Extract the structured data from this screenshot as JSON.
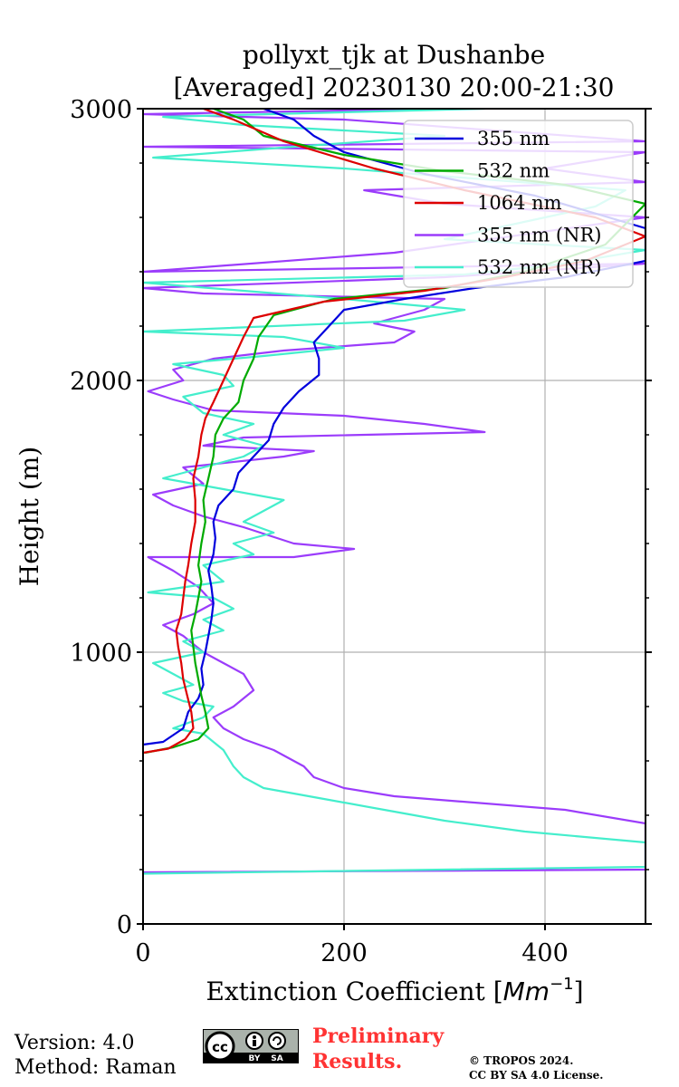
{
  "chart_data": {
    "type": "line",
    "title": [
      "pollyxt_tjk at Dushanbe",
      "[Averaged] 20230130 20:00-21:30"
    ],
    "xlabel": "Extinction Coefficient [",
    "xlabel_unit": "Mm",
    "xlabel_exp": "−1",
    "xlabel_close": "]",
    "ylabel": "Height (m)",
    "xlim": [
      0,
      500
    ],
    "ylim": [
      0,
      3000
    ],
    "xticks": [
      0,
      200,
      400
    ],
    "yticks": [
      0,
      1000,
      2000,
      3000
    ],
    "grid": true,
    "legend_position": "top-right",
    "series": [
      {
        "name": "355 nm",
        "color": "#0000dd",
        "points": [
          [
            0,
            660
          ],
          [
            20,
            670
          ],
          [
            40,
            720
          ],
          [
            45,
            780
          ],
          [
            55,
            830
          ],
          [
            60,
            880
          ],
          [
            58,
            940
          ],
          [
            62,
            1000
          ],
          [
            65,
            1060
          ],
          [
            68,
            1120
          ],
          [
            70,
            1180
          ],
          [
            68,
            1240
          ],
          [
            65,
            1300
          ],
          [
            70,
            1360
          ],
          [
            72,
            1420
          ],
          [
            70,
            1480
          ],
          [
            75,
            1540
          ],
          [
            90,
            1600
          ],
          [
            95,
            1660
          ],
          [
            110,
            1720
          ],
          [
            125,
            1780
          ],
          [
            130,
            1840
          ],
          [
            140,
            1900
          ],
          [
            155,
            1960
          ],
          [
            175,
            2020
          ],
          [
            175,
            2080
          ],
          [
            170,
            2140
          ],
          [
            185,
            2200
          ],
          [
            200,
            2260
          ],
          [
            260,
            2300
          ],
          [
            330,
            2340
          ],
          [
            420,
            2380
          ],
          [
            500,
            2440
          ],
          [
            500,
            2560
          ],
          [
            390,
            2680
          ],
          [
            280,
            2760
          ],
          [
            200,
            2840
          ],
          [
            170,
            2900
          ],
          [
            150,
            2960
          ],
          [
            120,
            3000
          ]
        ]
      },
      {
        "name": "532 nm",
        "color": "#00aa00",
        "points": [
          [
            2,
            630
          ],
          [
            30,
            650
          ],
          [
            55,
            680
          ],
          [
            65,
            720
          ],
          [
            62,
            780
          ],
          [
            58,
            840
          ],
          [
            55,
            900
          ],
          [
            52,
            960
          ],
          [
            50,
            1020
          ],
          [
            48,
            1080
          ],
          [
            52,
            1140
          ],
          [
            55,
            1200
          ],
          [
            58,
            1260
          ],
          [
            55,
            1320
          ],
          [
            58,
            1400
          ],
          [
            62,
            1480
          ],
          [
            60,
            1560
          ],
          [
            65,
            1640
          ],
          [
            70,
            1720
          ],
          [
            72,
            1800
          ],
          [
            80,
            1860
          ],
          [
            95,
            1920
          ],
          [
            100,
            2000
          ],
          [
            110,
            2080
          ],
          [
            115,
            2160
          ],
          [
            130,
            2240
          ],
          [
            190,
            2300
          ],
          [
            300,
            2340
          ],
          [
            380,
            2400
          ],
          [
            460,
            2500
          ],
          [
            500,
            2650
          ],
          [
            420,
            2720
          ],
          [
            300,
            2770
          ],
          [
            200,
            2830
          ],
          [
            120,
            2900
          ],
          [
            100,
            2960
          ],
          [
            70,
            3000
          ]
        ]
      },
      {
        "name": "1064 nm",
        "color": "#dd0000",
        "points": [
          [
            0,
            630
          ],
          [
            25,
            645
          ],
          [
            42,
            680
          ],
          [
            50,
            720
          ],
          [
            48,
            780
          ],
          [
            44,
            840
          ],
          [
            40,
            900
          ],
          [
            38,
            960
          ],
          [
            35,
            1020
          ],
          [
            33,
            1080
          ],
          [
            38,
            1140
          ],
          [
            40,
            1200
          ],
          [
            42,
            1260
          ],
          [
            45,
            1320
          ],
          [
            48,
            1400
          ],
          [
            52,
            1480
          ],
          [
            52,
            1560
          ],
          [
            50,
            1640
          ],
          [
            55,
            1720
          ],
          [
            58,
            1800
          ],
          [
            62,
            1860
          ],
          [
            70,
            1920
          ],
          [
            80,
            2000
          ],
          [
            90,
            2080
          ],
          [
            100,
            2160
          ],
          [
            110,
            2230
          ],
          [
            180,
            2290
          ],
          [
            280,
            2330
          ],
          [
            360,
            2380
          ],
          [
            440,
            2440
          ],
          [
            500,
            2530
          ],
          [
            450,
            2600
          ],
          [
            320,
            2700
          ],
          [
            230,
            2780
          ],
          [
            140,
            2880
          ],
          [
            90,
            2960
          ],
          [
            60,
            3000
          ]
        ]
      },
      {
        "name": "355 nm (NR)",
        "color": "#9b3cfb",
        "points": [
          [
            0,
            190
          ],
          [
            500,
            200
          ],
          [
            500,
            370
          ],
          [
            420,
            420
          ],
          [
            250,
            470
          ],
          [
            200,
            500
          ],
          [
            170,
            540
          ],
          [
            160,
            580
          ],
          [
            130,
            640
          ],
          [
            100,
            680
          ],
          [
            80,
            720
          ],
          [
            70,
            760
          ],
          [
            90,
            800
          ],
          [
            110,
            860
          ],
          [
            100,
            920
          ],
          [
            80,
            960
          ],
          [
            60,
            1000
          ],
          [
            40,
            1060
          ],
          [
            20,
            1100
          ],
          [
            50,
            1140
          ],
          [
            70,
            1180
          ],
          [
            55,
            1240
          ],
          [
            30,
            1300
          ],
          [
            5,
            1350
          ],
          [
            150,
            1350
          ],
          [
            210,
            1380
          ],
          [
            150,
            1400
          ],
          [
            100,
            1460
          ],
          [
            60,
            1500
          ],
          [
            30,
            1540
          ],
          [
            10,
            1580
          ],
          [
            60,
            1620
          ],
          [
            40,
            1680
          ],
          [
            140,
            1720
          ],
          [
            170,
            1740
          ],
          [
            60,
            1760
          ],
          [
            100,
            1790
          ],
          [
            340,
            1810
          ],
          [
            280,
            1840
          ],
          [
            200,
            1870
          ],
          [
            70,
            1890
          ],
          [
            30,
            1930
          ],
          [
            5,
            1960
          ],
          [
            40,
            2000
          ],
          [
            30,
            2040
          ],
          [
            70,
            2080
          ],
          [
            140,
            2110
          ],
          [
            250,
            2140
          ],
          [
            270,
            2180
          ],
          [
            230,
            2210
          ],
          [
            280,
            2260
          ],
          [
            300,
            2300
          ],
          [
            60,
            2320
          ],
          [
            0,
            2340
          ],
          [
            300,
            2380
          ],
          [
            500,
            2430
          ],
          [
            0,
            2400
          ],
          [
            250,
            2470
          ],
          [
            500,
            2600
          ],
          [
            300,
            2650
          ],
          [
            220,
            2700
          ],
          [
            500,
            2730
          ],
          [
            400,
            2780
          ],
          [
            500,
            2840
          ],
          [
            0,
            2860
          ],
          [
            500,
            2880
          ],
          [
            200,
            2960
          ],
          [
            0,
            2980
          ],
          [
            300,
            3000
          ]
        ]
      },
      {
        "name": "532 nm (NR)",
        "color": "#44eecc",
        "points": [
          [
            0,
            185
          ],
          [
            500,
            210
          ],
          [
            500,
            300
          ],
          [
            380,
            340
          ],
          [
            300,
            380
          ],
          [
            240,
            420
          ],
          [
            180,
            460
          ],
          [
            120,
            500
          ],
          [
            100,
            540
          ],
          [
            90,
            580
          ],
          [
            80,
            640
          ],
          [
            60,
            700
          ],
          [
            30,
            720
          ],
          [
            60,
            760
          ],
          [
            70,
            800
          ],
          [
            40,
            820
          ],
          [
            20,
            850
          ],
          [
            50,
            880
          ],
          [
            30,
            920
          ],
          [
            10,
            960
          ],
          [
            60,
            1000
          ],
          [
            40,
            1040
          ],
          [
            80,
            1080
          ],
          [
            60,
            1120
          ],
          [
            90,
            1160
          ],
          [
            70,
            1200
          ],
          [
            5,
            1220
          ],
          [
            80,
            1260
          ],
          [
            60,
            1320
          ],
          [
            110,
            1360
          ],
          [
            90,
            1400
          ],
          [
            130,
            1440
          ],
          [
            100,
            1480
          ],
          [
            140,
            1560
          ],
          [
            80,
            1600
          ],
          [
            20,
            1640
          ],
          [
            60,
            1680
          ],
          [
            100,
            1720
          ],
          [
            120,
            1760
          ],
          [
            80,
            1800
          ],
          [
            110,
            1840
          ],
          [
            60,
            1880
          ],
          [
            40,
            1940
          ],
          [
            90,
            1980
          ],
          [
            80,
            2020
          ],
          [
            30,
            2060
          ],
          [
            120,
            2090
          ],
          [
            200,
            2120
          ],
          [
            140,
            2160
          ],
          [
            0,
            2180
          ],
          [
            260,
            2220
          ],
          [
            320,
            2260
          ],
          [
            200,
            2300
          ],
          [
            100,
            2330
          ],
          [
            0,
            2360
          ],
          [
            320,
            2390
          ],
          [
            420,
            2430
          ],
          [
            500,
            2480
          ],
          [
            300,
            2520
          ],
          [
            400,
            2600
          ],
          [
            450,
            2640
          ],
          [
            480,
            2700
          ],
          [
            200,
            2780
          ],
          [
            10,
            2820
          ],
          [
            150,
            2860
          ],
          [
            300,
            2900
          ],
          [
            100,
            2940
          ],
          [
            20,
            2970
          ],
          [
            340,
            3000
          ]
        ]
      }
    ]
  },
  "footer": {
    "version": "Version: 4.0",
    "method": "Method: Raman",
    "prelim_1": "Preliminary",
    "prelim_2": "Results.",
    "copyright_1": "© TROPOS 2024.",
    "copyright_2": "CC BY SA 4.0 License.",
    "cc_badge_text": [
      "BY",
      "SA"
    ]
  }
}
